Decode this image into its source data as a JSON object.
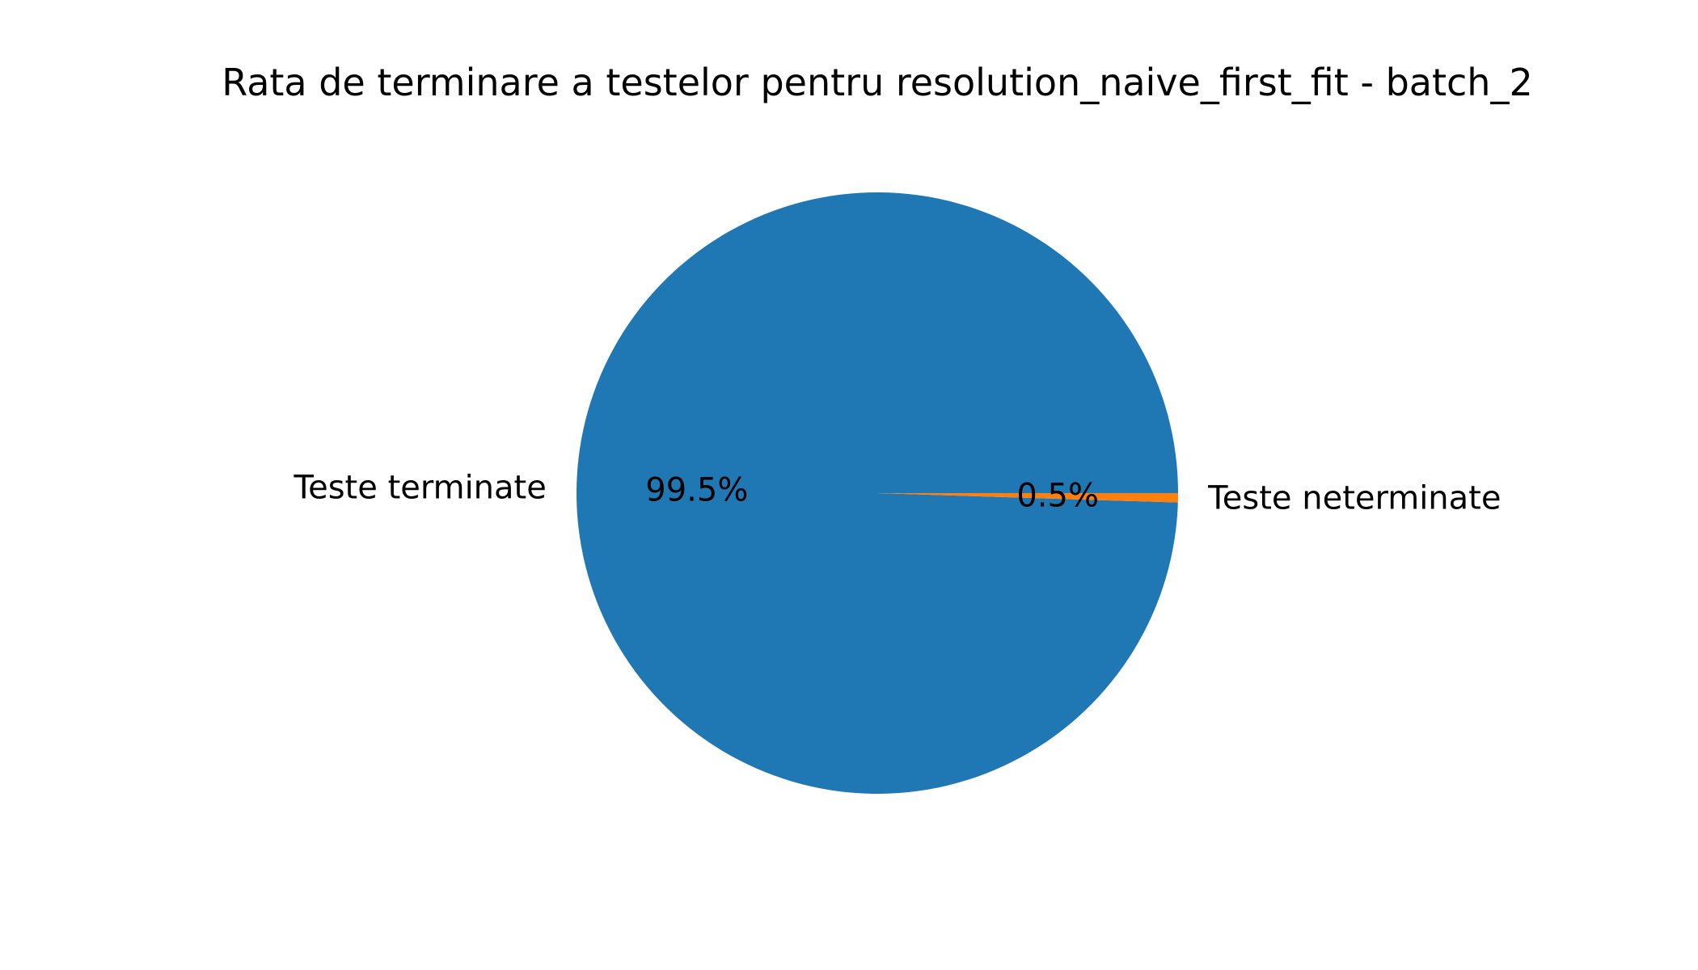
{
  "chart_data": {
    "type": "pie",
    "title": "Rata de terminare a testelor pentru resolution_naive_first_fit - batch_2",
    "slices": [
      {
        "label": "Teste terminate",
        "value": 99.5,
        "pct_label": "99.5%",
        "color": "#1f77b4"
      },
      {
        "label": "Teste neterminate",
        "value": 0.5,
        "pct_label": "0.5%",
        "color": "#ff7f0e"
      }
    ],
    "start_angle_deg": 0,
    "direction": "counterclockwise",
    "legend": "none"
  }
}
